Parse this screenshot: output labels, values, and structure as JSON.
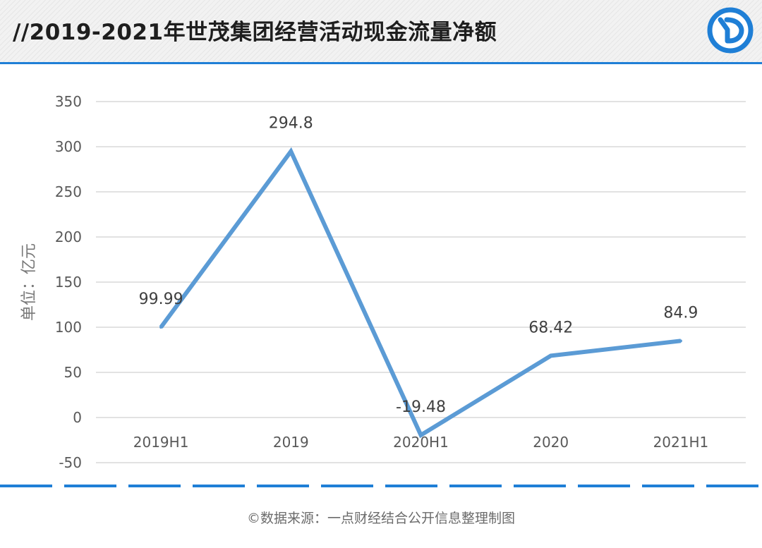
{
  "header": {
    "title": "//2019-2021年世茂集团经营活动现金流量净额"
  },
  "chart_data": {
    "type": "line",
    "categories": [
      "2019H1",
      "2019",
      "2020H1",
      "2020",
      "2021H1"
    ],
    "series": [
      {
        "values": [
          99.99,
          294.8,
          -19.48,
          68.42,
          84.9
        ],
        "labels": [
          "99.99",
          "294.8",
          "-19.48",
          "68.42",
          "84.9"
        ]
      }
    ],
    "ylabel": "单位：亿元",
    "ylim": [
      -50,
      350
    ],
    "yticks": [
      350,
      300,
      250,
      200,
      150,
      100,
      50,
      0,
      -50
    ],
    "grid": true,
    "line_color": "#5b9bd5"
  },
  "footer": {
    "source": "©数据来源：一点财经结合公开信息整理制图"
  },
  "colors": {
    "accent": "#1f7fd6",
    "line": "#5b9bd5",
    "grid": "#d9d9d9"
  },
  "icons": {
    "logo": "yidian-logo-icon"
  }
}
